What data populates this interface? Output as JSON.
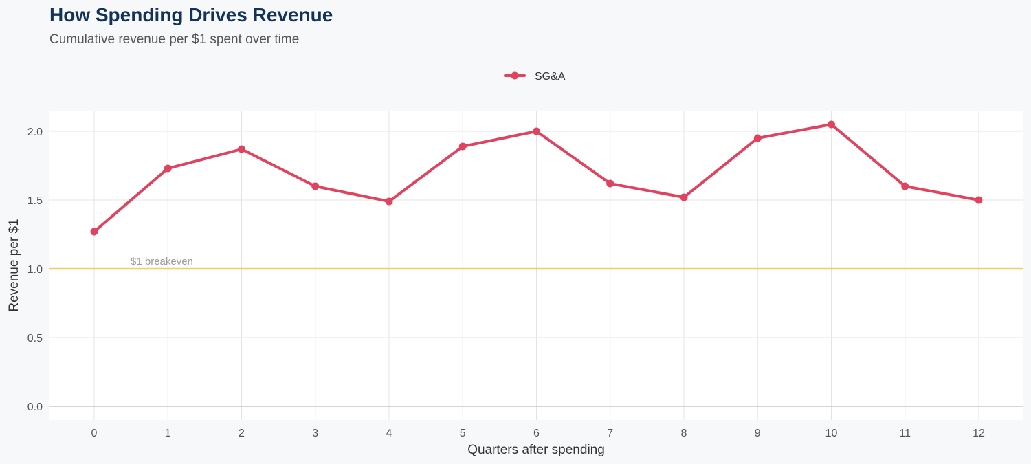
{
  "header": {
    "title": "How Spending Drives Revenue",
    "subtitle": "Cumulative revenue per $1 spent over time"
  },
  "chart_data": {
    "type": "line",
    "xlabel": "Quarters after spending",
    "ylabel": "Revenue per $1",
    "xlim": [
      0,
      12
    ],
    "ylim": [
      0,
      2.15
    ],
    "x_ticks": [
      0,
      1,
      2,
      3,
      4,
      5,
      6,
      7,
      8,
      9,
      10,
      11,
      12
    ],
    "y_ticks": [
      "0.0",
      "0.5",
      "1.0",
      "1.5",
      "2.0"
    ],
    "grid": true,
    "legend_position": "top-center",
    "x": [
      0,
      1,
      2,
      3,
      4,
      5,
      6,
      7,
      8,
      9,
      10,
      11,
      12
    ],
    "series": [
      {
        "name": "SG&A",
        "color": "#e0435f",
        "values": [
          1.27,
          1.73,
          1.87,
          1.6,
          1.49,
          1.89,
          2.0,
          1.62,
          1.52,
          1.95,
          2.05,
          1.6,
          1.5
        ]
      }
    ],
    "reference_line": {
      "value": 1.0,
      "label": "$1 breakeven",
      "color": "#f2cd6e"
    }
  }
}
